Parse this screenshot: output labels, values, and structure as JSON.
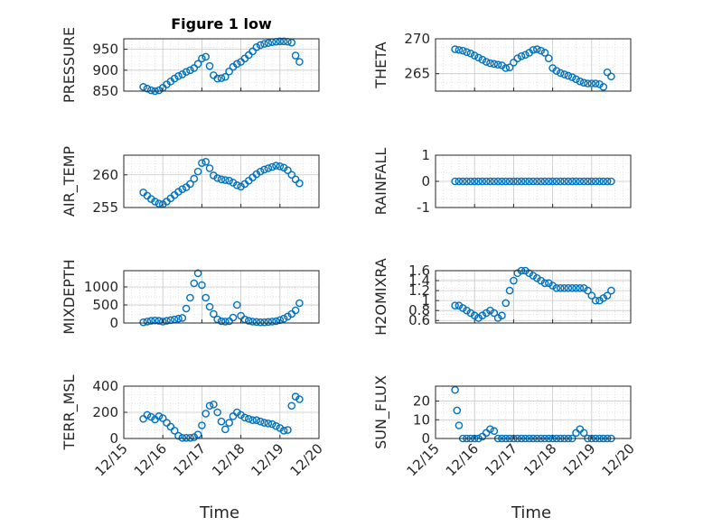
{
  "chart_data": [
    {
      "type": "scatter",
      "title": "Figure 1 low",
      "ylabel": "PRESSURE",
      "xlabel": "",
      "xlim": [
        0,
        5
      ],
      "ylim": [
        850,
        975
      ],
      "yticks": [
        850,
        900,
        950
      ],
      "xticks": [
        "12/15",
        "12/16",
        "12/17",
        "12/18",
        "12/19",
        "12/20"
      ],
      "x": [
        0.5,
        0.6,
        0.7,
        0.8,
        0.9,
        1.0,
        1.1,
        1.2,
        1.3,
        1.4,
        1.5,
        1.6,
        1.7,
        1.8,
        1.9,
        2.0,
        2.1,
        2.2,
        2.3,
        2.4,
        2.5,
        2.6,
        2.7,
        2.8,
        2.9,
        3.0,
        3.1,
        3.2,
        3.3,
        3.4,
        3.5,
        3.6,
        3.7,
        3.8,
        3.9,
        4.0,
        4.1,
        4.2,
        4.3,
        4.4,
        4.5
      ],
      "y": [
        860,
        856,
        852,
        850,
        852,
        858,
        866,
        873,
        880,
        886,
        890,
        896,
        900,
        905,
        915,
        928,
        932,
        910,
        888,
        880,
        881,
        884,
        897,
        908,
        915,
        920,
        928,
        936,
        945,
        955,
        960,
        963,
        965,
        967,
        968,
        969,
        969,
        968,
        966,
        935,
        920
      ]
    },
    {
      "type": "scatter",
      "title": "",
      "ylabel": "THETA",
      "xlabel": "",
      "xlim": [
        0,
        5
      ],
      "ylim": [
        262.5,
        270
      ],
      "yticks": [
        265,
        270
      ],
      "xticks": [
        "12/15",
        "12/16",
        "12/17",
        "12/18",
        "12/19",
        "12/20"
      ],
      "x": [
        0.5,
        0.6,
        0.7,
        0.8,
        0.9,
        1.0,
        1.1,
        1.2,
        1.3,
        1.4,
        1.5,
        1.6,
        1.7,
        1.8,
        1.9,
        2.0,
        2.1,
        2.2,
        2.3,
        2.4,
        2.5,
        2.6,
        2.7,
        2.8,
        2.9,
        3.0,
        3.1,
        3.2,
        3.3,
        3.4,
        3.5,
        3.6,
        3.7,
        3.8,
        3.9,
        4.0,
        4.1,
        4.2,
        4.3,
        4.4,
        4.5
      ],
      "y": [
        268.5,
        268.4,
        268.3,
        268.1,
        267.9,
        267.6,
        267.3,
        267.0,
        266.7,
        266.5,
        266.4,
        266.3,
        266.2,
        265.8,
        265.9,
        266.6,
        267.2,
        267.5,
        267.7,
        268.0,
        268.4,
        268.5,
        268.3,
        268.0,
        267.2,
        265.8,
        265.4,
        265.1,
        264.9,
        264.7,
        264.5,
        264.2,
        263.9,
        263.7,
        263.6,
        263.6,
        263.6,
        263.5,
        263.1,
        265.2,
        264.6
      ]
    },
    {
      "type": "scatter",
      "title": "",
      "ylabel": "AIR_TEMP",
      "xlabel": "",
      "xlim": [
        0,
        5
      ],
      "ylim": [
        255,
        263
      ],
      "yticks": [
        255,
        260
      ],
      "xticks": [
        "12/15",
        "12/16",
        "12/17",
        "12/18",
        "12/19",
        "12/20"
      ],
      "x": [
        0.5,
        0.6,
        0.7,
        0.8,
        0.9,
        1.0,
        1.1,
        1.2,
        1.3,
        1.4,
        1.5,
        1.6,
        1.7,
        1.8,
        1.9,
        2.0,
        2.1,
        2.2,
        2.3,
        2.4,
        2.5,
        2.6,
        2.7,
        2.8,
        2.9,
        3.0,
        3.1,
        3.2,
        3.3,
        3.4,
        3.5,
        3.6,
        3.7,
        3.8,
        3.9,
        4.0,
        4.1,
        4.2,
        4.3,
        4.4,
        4.5
      ],
      "y": [
        257.3,
        256.8,
        256.3,
        255.9,
        255.6,
        255.5,
        255.9,
        256.4,
        256.9,
        257.4,
        257.8,
        258.1,
        258.6,
        259.4,
        260.5,
        261.8,
        262.0,
        261.0,
        259.9,
        259.5,
        259.3,
        259.2,
        259.1,
        258.8,
        258.4,
        258.2,
        258.6,
        259.1,
        259.6,
        260.1,
        260.5,
        260.8,
        261.0,
        261.2,
        261.4,
        261.3,
        261.1,
        260.7,
        260.0,
        259.3,
        258.7
      ]
    },
    {
      "type": "scatter",
      "title": "",
      "ylabel": "RAINFALL",
      "xlabel": "",
      "xlim": [
        0,
        5
      ],
      "ylim": [
        -1,
        1
      ],
      "yticks": [
        -1,
        0,
        1
      ],
      "xticks": [
        "12/15",
        "12/16",
        "12/17",
        "12/18",
        "12/19",
        "12/20"
      ],
      "x": [
        0.5,
        0.6,
        0.7,
        0.8,
        0.9,
        1.0,
        1.1,
        1.2,
        1.3,
        1.4,
        1.5,
        1.6,
        1.7,
        1.8,
        1.9,
        2.0,
        2.1,
        2.2,
        2.3,
        2.4,
        2.5,
        2.6,
        2.7,
        2.8,
        2.9,
        3.0,
        3.1,
        3.2,
        3.3,
        3.4,
        3.5,
        3.6,
        3.7,
        3.8,
        3.9,
        4.0,
        4.1,
        4.2,
        4.3,
        4.4,
        4.5
      ],
      "y": [
        0,
        0,
        0,
        0,
        0,
        0,
        0,
        0,
        0,
        0,
        0,
        0,
        0,
        0,
        0,
        0,
        0,
        0,
        0,
        0,
        0,
        0,
        0,
        0,
        0,
        0,
        0,
        0,
        0,
        0,
        0,
        0,
        0,
        0,
        0,
        0,
        0,
        0,
        0,
        0,
        0
      ]
    },
    {
      "type": "scatter",
      "title": "",
      "ylabel": "MIXDEPTH",
      "xlabel": "",
      "xlim": [
        0,
        5
      ],
      "ylim": [
        0,
        1450
      ],
      "yticks": [
        0,
        500,
        1000
      ],
      "xticks": [
        "12/15",
        "12/16",
        "12/17",
        "12/18",
        "12/19",
        "12/20"
      ],
      "x": [
        0.5,
        0.6,
        0.7,
        0.8,
        0.9,
        1.0,
        1.1,
        1.2,
        1.3,
        1.4,
        1.5,
        1.6,
        1.7,
        1.8,
        1.9,
        2.0,
        2.1,
        2.2,
        2.3,
        2.4,
        2.5,
        2.6,
        2.7,
        2.8,
        2.9,
        3.0,
        3.1,
        3.2,
        3.3,
        3.4,
        3.5,
        3.6,
        3.7,
        3.8,
        3.9,
        4.0,
        4.1,
        4.2,
        4.3,
        4.4,
        4.5
      ],
      "y": [
        20,
        40,
        60,
        70,
        60,
        40,
        60,
        80,
        100,
        120,
        140,
        400,
        700,
        1100,
        1380,
        1050,
        700,
        450,
        250,
        100,
        50,
        40,
        50,
        150,
        500,
        200,
        100,
        60,
        40,
        30,
        20,
        20,
        30,
        40,
        50,
        80,
        120,
        180,
        250,
        350,
        550
      ]
    },
    {
      "type": "scatter",
      "title": "",
      "ylabel": "H2OMIXRA",
      "xlabel": "",
      "xlim": [
        0,
        5
      ],
      "ylim": [
        0.55,
        1.6
      ],
      "yticks": [
        0.6,
        0.8,
        1,
        1.2,
        1.4,
        1.6
      ],
      "xticks": [
        "12/15",
        "12/16",
        "12/17",
        "12/18",
        "12/19",
        "12/20"
      ],
      "x": [
        0.5,
        0.6,
        0.7,
        0.8,
        0.9,
        1.0,
        1.1,
        1.2,
        1.3,
        1.4,
        1.5,
        1.6,
        1.7,
        1.8,
        1.9,
        2.0,
        2.1,
        2.2,
        2.3,
        2.4,
        2.5,
        2.6,
        2.7,
        2.8,
        2.9,
        3.0,
        3.1,
        3.2,
        3.3,
        3.4,
        3.5,
        3.6,
        3.7,
        3.8,
        3.9,
        4.0,
        4.1,
        4.2,
        4.3,
        4.4,
        4.5
      ],
      "y": [
        0.9,
        0.9,
        0.85,
        0.8,
        0.75,
        0.7,
        0.65,
        0.7,
        0.75,
        0.8,
        0.75,
        0.65,
        0.7,
        0.95,
        1.2,
        1.4,
        1.55,
        1.6,
        1.6,
        1.55,
        1.5,
        1.45,
        1.4,
        1.35,
        1.35,
        1.3,
        1.25,
        1.25,
        1.25,
        1.25,
        1.25,
        1.25,
        1.25,
        1.25,
        1.2,
        1.1,
        1.0,
        1.0,
        1.05,
        1.1,
        1.2
      ]
    },
    {
      "type": "scatter",
      "title": "",
      "ylabel": "TERR_MSL",
      "xlabel": "Time",
      "xlim": [
        0,
        5
      ],
      "ylim": [
        0,
        400
      ],
      "yticks": [
        0,
        200,
        400
      ],
      "xticks": [
        "12/15",
        "12/16",
        "12/17",
        "12/18",
        "12/19",
        "12/20"
      ],
      "x": [
        0.5,
        0.6,
        0.7,
        0.8,
        0.9,
        1.0,
        1.1,
        1.2,
        1.3,
        1.4,
        1.5,
        1.6,
        1.7,
        1.8,
        1.9,
        2.0,
        2.1,
        2.2,
        2.3,
        2.4,
        2.5,
        2.6,
        2.7,
        2.8,
        2.9,
        3.0,
        3.1,
        3.2,
        3.3,
        3.4,
        3.5,
        3.6,
        3.7,
        3.8,
        3.9,
        4.0,
        4.1,
        4.2,
        4.3,
        4.4,
        4.5
      ],
      "y": [
        150,
        180,
        165,
        145,
        170,
        155,
        120,
        90,
        60,
        20,
        5,
        5,
        5,
        10,
        30,
        100,
        190,
        250,
        260,
        200,
        130,
        70,
        120,
        170,
        200,
        180,
        160,
        150,
        140,
        140,
        130,
        120,
        115,
        110,
        95,
        80,
        60,
        65,
        250,
        320,
        300
      ]
    },
    {
      "type": "scatter",
      "title": "",
      "ylabel": "SUN_FLUX",
      "xlabel": "Time",
      "xlim": [
        0,
        5
      ],
      "ylim": [
        0,
        28
      ],
      "yticks": [
        0,
        10,
        20
      ],
      "xticks": [
        "12/15",
        "12/16",
        "12/17",
        "12/18",
        "12/19",
        "12/20"
      ],
      "x": [
        0.5,
        0.55,
        0.6,
        0.7,
        0.8,
        0.9,
        1.0,
        1.1,
        1.2,
        1.3,
        1.4,
        1.5,
        1.6,
        1.7,
        1.8,
        1.9,
        2.0,
        2.1,
        2.2,
        2.3,
        2.4,
        2.5,
        2.6,
        2.7,
        2.8,
        2.9,
        3.0,
        3.1,
        3.2,
        3.3,
        3.4,
        3.5,
        3.6,
        3.7,
        3.8,
        3.9,
        4.0,
        4.1,
        4.2,
        4.3,
        4.4,
        4.5
      ],
      "y": [
        26,
        15,
        7,
        0,
        0,
        0,
        0,
        0,
        1,
        3,
        5,
        4,
        0,
        0,
        0,
        0,
        0,
        0,
        0,
        0,
        0,
        0,
        0,
        0,
        0,
        0,
        0,
        0,
        0,
        0,
        0,
        0,
        3,
        5,
        3,
        0,
        0,
        0,
        0,
        0,
        0,
        0
      ]
    }
  ]
}
